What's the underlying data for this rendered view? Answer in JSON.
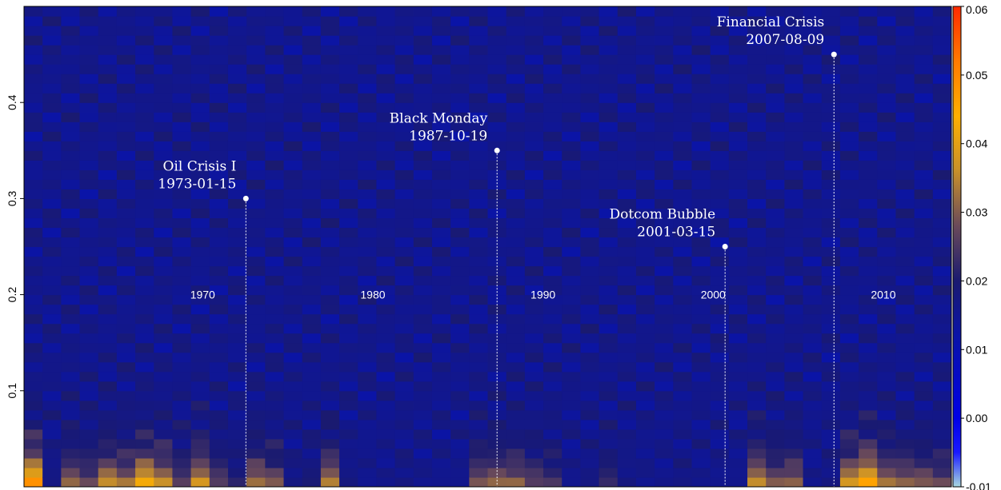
{
  "chart_data": {
    "type": "heatmap",
    "title": "",
    "xlabel": "",
    "ylabel": "",
    "x_range": [
      1960,
      2014.5
    ],
    "ylim": [
      0,
      0.5
    ],
    "y_ticks": [
      0.1,
      0.2,
      0.3,
      0.4
    ],
    "y_tick_labels": [
      "0.1",
      "0.2",
      "0.3",
      "0.4"
    ],
    "year_labels": [
      {
        "year": 1970,
        "label": "1970"
      },
      {
        "year": 1980,
        "label": "1980"
      },
      {
        "year": 1990,
        "label": "1990"
      },
      {
        "year": 2000,
        "label": "2000"
      },
      {
        "year": 2010,
        "label": "2010"
      }
    ],
    "colorbar": {
      "range": [
        -0.01,
        0.06
      ],
      "ticks": [
        -0.01,
        0.0,
        0.01,
        0.02,
        0.03,
        0.04,
        0.05,
        0.06
      ],
      "tick_labels": [
        "-0.01",
        "0.00",
        "0.01",
        "0.02",
        "0.03",
        "0.04",
        "0.05",
        "0.06"
      ],
      "stops": [
        {
          "value": -0.01,
          "color": "#a8d8e0"
        },
        {
          "value": -0.005,
          "color": "#1a1aff"
        },
        {
          "value": 0.0,
          "color": "#0000e6"
        },
        {
          "value": 0.012,
          "color": "#0a14a8"
        },
        {
          "value": 0.02,
          "color": "#1a1a70"
        },
        {
          "value": 0.028,
          "color": "#6a4a5a"
        },
        {
          "value": 0.036,
          "color": "#c8902a"
        },
        {
          "value": 0.044,
          "color": "#ffb000"
        },
        {
          "value": 0.052,
          "color": "#ff7a00"
        },
        {
          "value": 0.06,
          "color": "#ff2a00"
        }
      ]
    },
    "background_value": 0.016,
    "bottom_intensity": [
      0.055,
      0.018,
      0.034,
      0.03,
      0.04,
      0.036,
      0.048,
      0.04,
      0.028,
      0.042,
      0.028,
      0.022,
      0.036,
      0.032,
      0.018,
      0.02,
      0.038,
      0.018,
      0.016,
      0.016,
      0.018,
      0.016,
      0.016,
      0.016,
      0.032,
      0.034,
      0.034,
      0.028,
      0.026,
      0.016,
      0.018,
      0.024,
      0.018,
      0.016,
      0.016,
      0.018,
      0.016,
      0.016,
      0.016,
      0.04,
      0.032,
      0.034,
      0.016,
      0.018,
      0.042,
      0.052,
      0.036,
      0.034,
      0.032,
      0.03
    ],
    "events": [
      {
        "name": "Oil Crisis I",
        "date": "1973-01-15",
        "x": 1973.04,
        "y": 0.3
      },
      {
        "name": "Black Monday",
        "date": "1987-10-19",
        "x": 1987.8,
        "y": 0.35
      },
      {
        "name": "Dotcom Bubble",
        "date": "2001-03-15",
        "x": 2001.2,
        "y": 0.25
      },
      {
        "name": "Financial Crisis",
        "date": "2007-08-09",
        "x": 2007.6,
        "y": 0.45
      }
    ]
  }
}
